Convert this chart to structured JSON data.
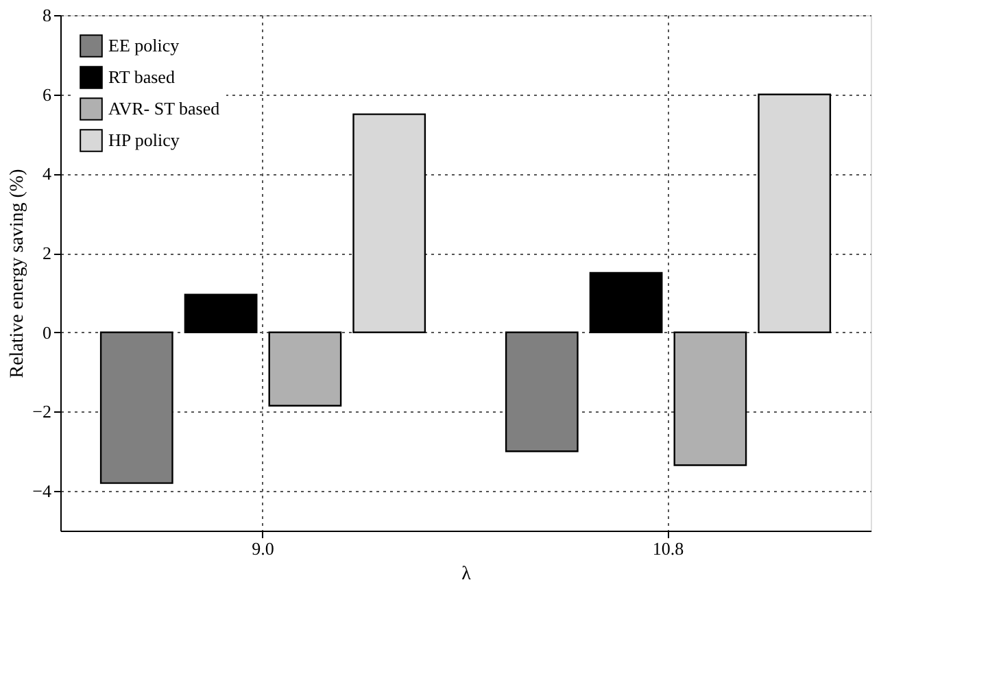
{
  "chart_data": {
    "type": "bar",
    "xlabel": "λ",
    "ylabel": "Relative energy saving (%)",
    "categories": [
      "9.0",
      "10.8"
    ],
    "series": [
      {
        "name": "EE policy",
        "color": "#808080",
        "values": [
          -3.8,
          -3.0
        ]
      },
      {
        "name": "RT based",
        "color": "#000000",
        "values": [
          0.95,
          1.5
        ]
      },
      {
        "name": "AVR- ST based",
        "color": "#b0b0b0",
        "values": [
          -1.85,
          -3.35
        ]
      },
      {
        "name": "HP policy",
        "color": "#d8d8d8",
        "values": [
          5.5,
          6.0
        ]
      }
    ],
    "ylim": [
      -5,
      8
    ],
    "yticks": [
      -4,
      -2,
      0,
      2,
      4,
      6,
      8
    ],
    "grid": true,
    "legend": "top left"
  }
}
